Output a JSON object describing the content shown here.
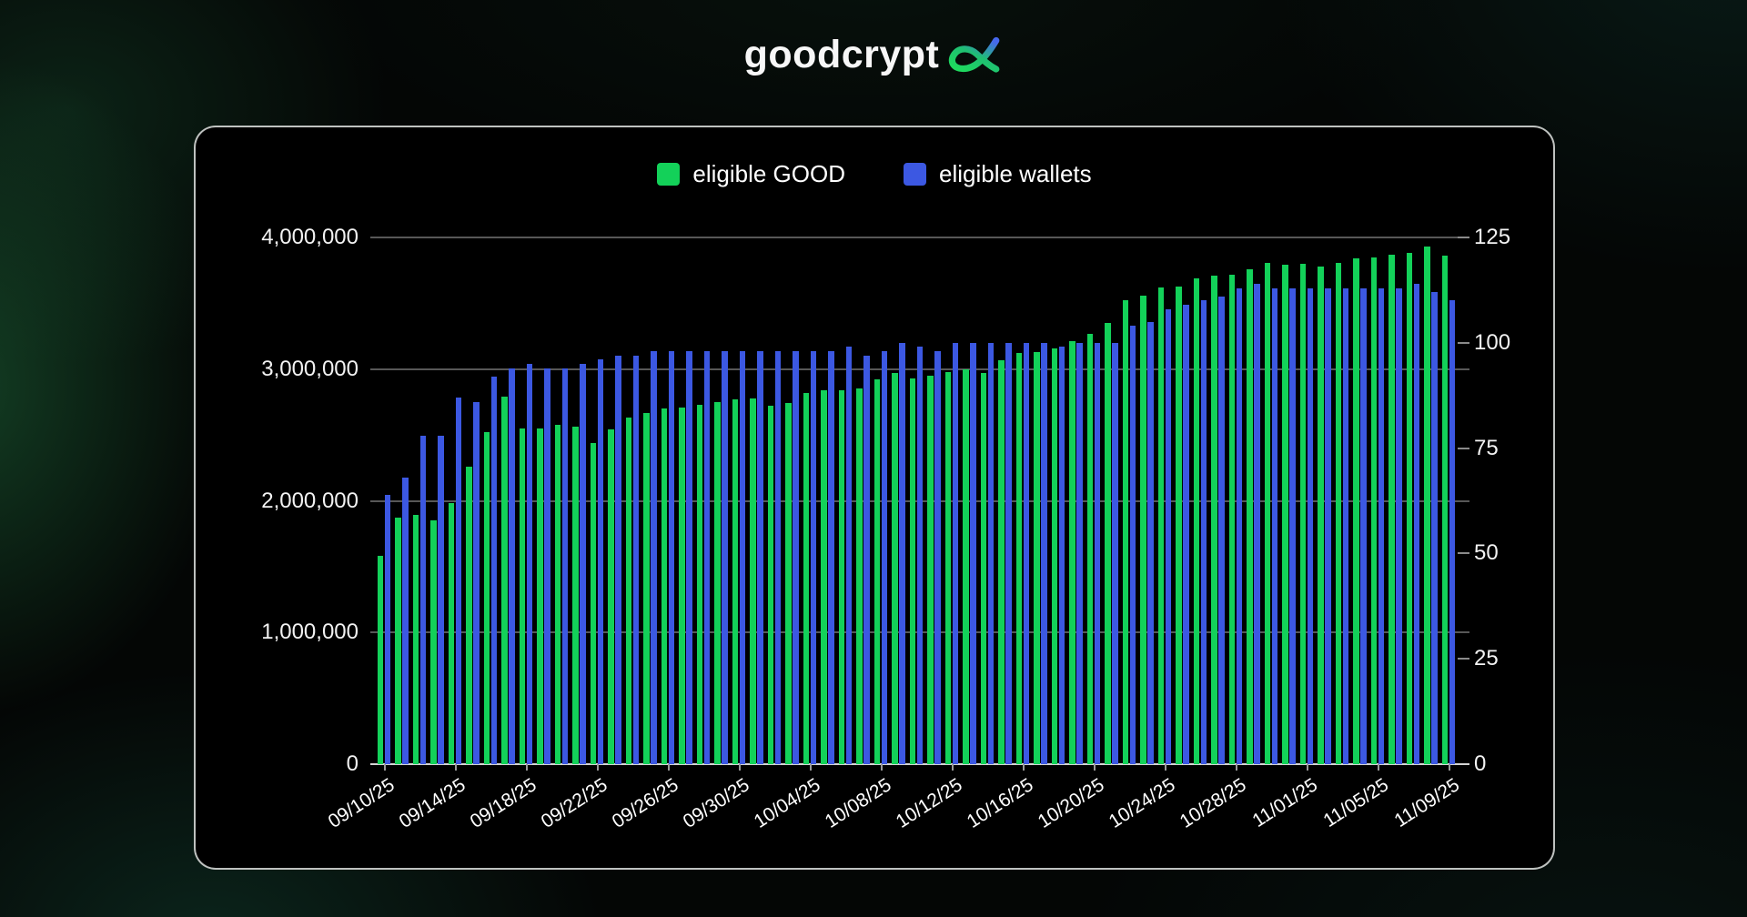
{
  "logo": {
    "text": "goodcrypt",
    "mark": "alpha-x-gradient",
    "mark_colors": [
      "#4668ee",
      "#1ed95e"
    ]
  },
  "chart_data": {
    "type": "bar",
    "title": "",
    "legend_position": "top",
    "grid": true,
    "x": [
      "09/10/25",
      "09/11/25",
      "09/12/25",
      "09/13/25",
      "09/14/25",
      "09/15/25",
      "09/16/25",
      "09/17/25",
      "09/18/25",
      "09/19/25",
      "09/20/25",
      "09/21/25",
      "09/22/25",
      "09/23/25",
      "09/24/25",
      "09/25/25",
      "09/26/25",
      "09/27/25",
      "09/28/25",
      "09/29/25",
      "09/30/25",
      "10/01/25",
      "10/02/25",
      "10/03/25",
      "10/04/25",
      "10/05/25",
      "10/06/25",
      "10/07/25",
      "10/08/25",
      "10/09/25",
      "10/10/25",
      "10/11/25",
      "10/12/25",
      "10/13/25",
      "10/14/25",
      "10/15/25",
      "10/16/25",
      "10/17/25",
      "10/18/25",
      "10/19/25",
      "10/20/25",
      "10/21/25",
      "10/22/25",
      "10/23/25",
      "10/24/25",
      "10/25/25",
      "10/26/25",
      "10/27/25",
      "10/28/25",
      "10/29/25",
      "10/30/25",
      "10/31/25",
      "11/01/25",
      "11/02/25",
      "11/03/25",
      "11/04/25",
      "11/05/25",
      "11/06/25",
      "11/07/25",
      "11/08/25",
      "11/09/25"
    ],
    "x_tick_labels_shown": [
      "09/10/25",
      "09/14/25",
      "09/18/25",
      "09/22/25",
      "09/26/25",
      "09/30/25",
      "10/04/25",
      "10/08/25",
      "10/12/25",
      "10/16/25",
      "10/20/25",
      "10/24/25",
      "10/28/25",
      "11/01/25",
      "11/05/25",
      "11/09/25"
    ],
    "series": [
      {
        "name": "eligible GOOD",
        "axis": "left",
        "color": "#13d159",
        "values": [
          1580000,
          1870000,
          1890000,
          1850000,
          1980000,
          2260000,
          2520000,
          2790000,
          2550000,
          2550000,
          2580000,
          2560000,
          2440000,
          2540000,
          2630000,
          2670000,
          2700000,
          2710000,
          2730000,
          2750000,
          2770000,
          2780000,
          2720000,
          2740000,
          2820000,
          2840000,
          2840000,
          2850000,
          2920000,
          2970000,
          2930000,
          2950000,
          2980000,
          3000000,
          2970000,
          3070000,
          3120000,
          3130000,
          3160000,
          3210000,
          3270000,
          3350000,
          3520000,
          3560000,
          3620000,
          3630000,
          3690000,
          3710000,
          3720000,
          3760000,
          3810000,
          3790000,
          3800000,
          3780000,
          3810000,
          3840000,
          3850000,
          3870000,
          3880000,
          3930000,
          3860000
        ]
      },
      {
        "name": "eligible wallets",
        "axis": "right",
        "color": "#3c58e2",
        "values": [
          64,
          68,
          78,
          78,
          87,
          86,
          92,
          94,
          95,
          94,
          94,
          95,
          96,
          97,
          97,
          98,
          98,
          98,
          98,
          98,
          98,
          98,
          98,
          98,
          98,
          98,
          99,
          97,
          98,
          100,
          99,
          98,
          100,
          100,
          100,
          100,
          100,
          100,
          99,
          100,
          100,
          100,
          104,
          105,
          108,
          109,
          110,
          111,
          113,
          114,
          113,
          113,
          113,
          113,
          113,
          113,
          113,
          113,
          114,
          112,
          110
        ]
      }
    ],
    "left_axis": {
      "min": 0,
      "max": 4000000,
      "tick_labels_bottom_up": [
        "0",
        "1,000,000",
        "2,000,000",
        "3,000,000",
        "4,000,000"
      ]
    },
    "right_axis": {
      "min": 0,
      "max": 125,
      "ticks": [
        0,
        25,
        50,
        75,
        100,
        125
      ]
    }
  }
}
